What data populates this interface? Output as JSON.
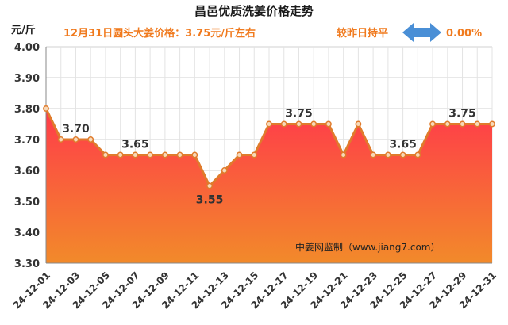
{
  "title": "昌邑优质洗姜价格走势",
  "unit_label": "元/斤",
  "subtitle": "12月31日圆头大姜价格：3.75元/斤左右",
  "compare": {
    "label": "较昨日持平",
    "change": "0.00%"
  },
  "watermark": "中姜网监制（www.jiang7.com）",
  "colors": {
    "line": "#e07b2c",
    "marker_fill": "#f7d9b8",
    "grad_top": "#ff3b4a",
    "grad_bottom": "#f28a2a",
    "accent": "#f07a1e",
    "arrow": "#4a8fd6"
  },
  "chart_data": {
    "type": "area",
    "title": "昌邑优质洗姜价格走势",
    "ylabel": "元/斤",
    "ylim": [
      3.3,
      4.0
    ],
    "yticks": [
      "3.30",
      "3.40",
      "3.50",
      "3.60",
      "3.70",
      "3.80",
      "3.90",
      "4.00"
    ],
    "grid": true,
    "x": [
      "24-12-01",
      "24-12-02",
      "24-12-03",
      "24-12-04",
      "24-12-05",
      "24-12-06",
      "24-12-07",
      "24-12-08",
      "24-12-09",
      "24-12-10",
      "24-12-11",
      "24-12-12",
      "24-12-13",
      "24-12-14",
      "24-12-15",
      "24-12-16",
      "24-12-17",
      "24-12-18",
      "24-12-19",
      "24-12-20",
      "24-12-21",
      "24-12-22",
      "24-12-23",
      "24-12-24",
      "24-12-25",
      "24-12-26",
      "24-12-27",
      "24-12-28",
      "24-12-29",
      "24-12-30",
      "24-12-31"
    ],
    "xtick_labels": [
      "24-12-01",
      "24-12-03",
      "24-12-05",
      "24-12-07",
      "24-12-09",
      "24-12-11",
      "24-12-13",
      "24-12-15",
      "24-12-17",
      "24-12-19",
      "24-12-21",
      "24-12-23",
      "24-12-25",
      "24-12-27",
      "24-12-29",
      "24-12-31"
    ],
    "values": [
      3.8,
      3.7,
      3.7,
      3.7,
      3.65,
      3.65,
      3.65,
      3.65,
      3.65,
      3.65,
      3.65,
      3.55,
      3.6,
      3.65,
      3.65,
      3.75,
      3.75,
      3.75,
      3.75,
      3.75,
      3.65,
      3.75,
      3.65,
      3.65,
      3.65,
      3.65,
      3.75,
      3.75,
      3.75,
      3.75,
      3.75
    ],
    "data_labels": [
      {
        "x": "24-12-03",
        "value": 3.7,
        "text": "3.70"
      },
      {
        "x": "24-12-07",
        "value": 3.65,
        "text": "3.65"
      },
      {
        "x": "24-12-12",
        "value": 3.55,
        "text": "3.55"
      },
      {
        "x": "24-12-18",
        "value": 3.75,
        "text": "3.75"
      },
      {
        "x": "24-12-25",
        "value": 3.65,
        "text": "3.65"
      },
      {
        "x": "24-12-29",
        "value": 3.75,
        "text": "3.75"
      }
    ]
  }
}
